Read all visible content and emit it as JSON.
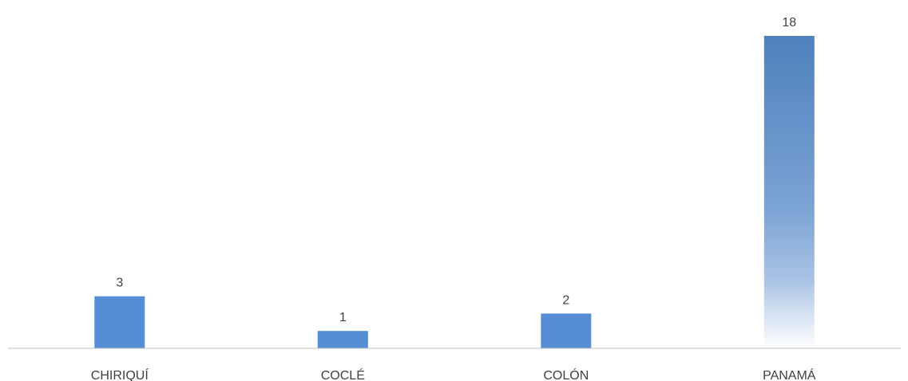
{
  "chart_data": {
    "type": "bar",
    "categories": [
      "CHIRIQUÍ",
      "COCLÉ",
      "COLÓN",
      "PANAMÁ"
    ],
    "values": [
      3,
      1,
      2,
      18
    ],
    "data_labels": [
      "3",
      "1",
      "2",
      "18"
    ],
    "ylim": [
      0,
      18
    ],
    "grid": false,
    "legend": "none",
    "colors": {
      "bar": "#558ed5",
      "bar_highlight_top": "#4f81bd",
      "axis": "#bfbfbf",
      "text": "#404040"
    }
  }
}
